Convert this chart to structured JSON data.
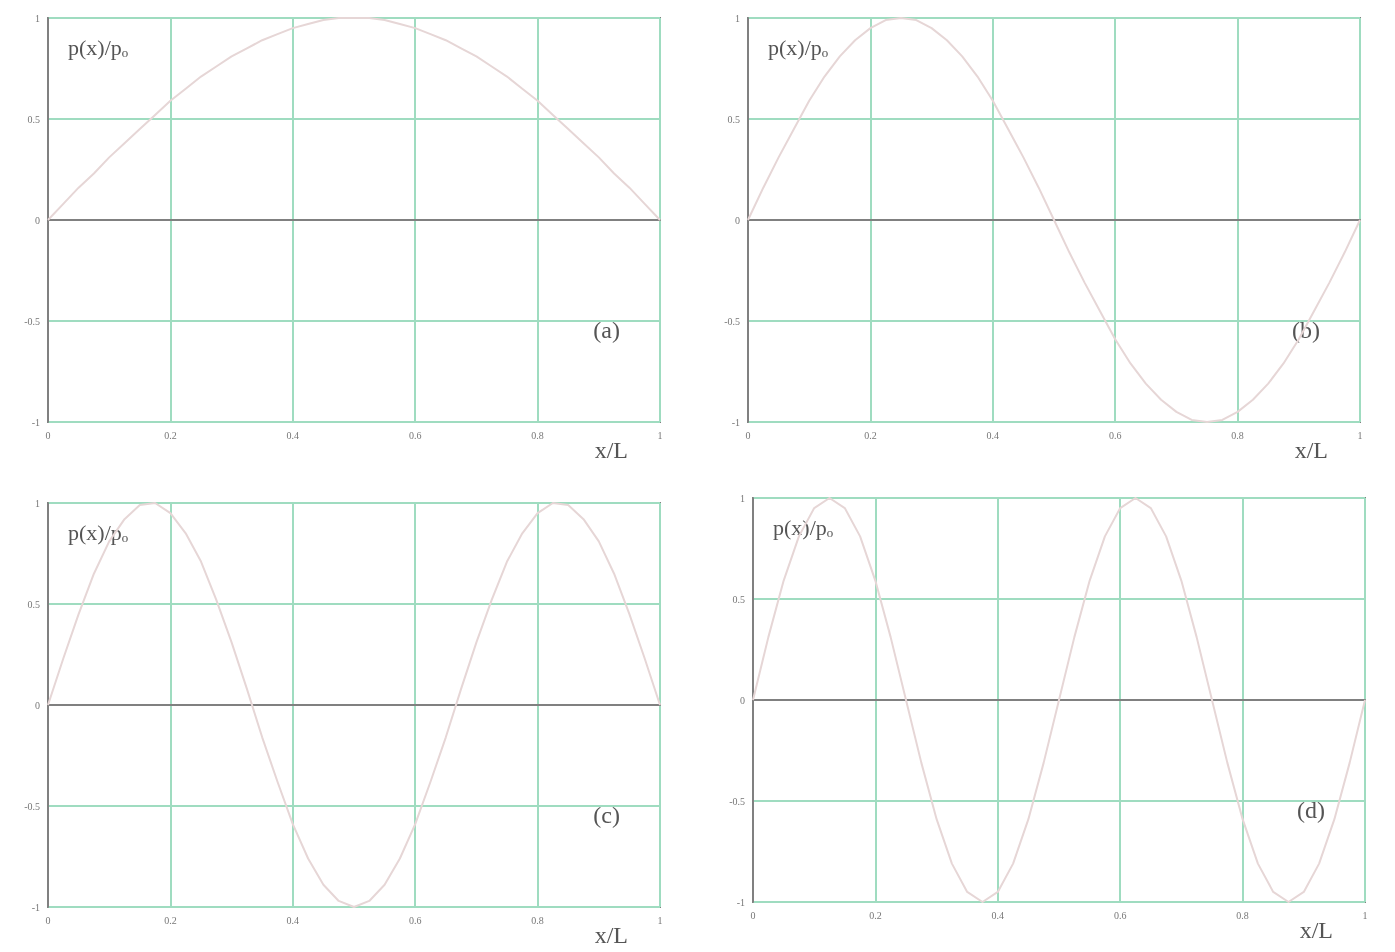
{
  "chart_data": [
    {
      "type": "line",
      "ylabel": "p(x)/pₒ",
      "xlabel": "x/L",
      "annotations": [
        "(a)"
      ],
      "color": "#e6d6d6",
      "marker": "none",
      "grid": true,
      "xlim": [
        0,
        1
      ],
      "xticks": [
        0,
        0.2,
        0.4,
        0.6,
        0.8,
        1
      ],
      "ylim": [
        -1,
        1
      ],
      "yticks": [
        -1,
        -0.5,
        0,
        0.5,
        1
      ],
      "x": [
        0,
        0.025,
        0.05,
        0.075,
        0.1,
        0.125,
        0.15,
        0.175,
        0.2,
        0.225,
        0.25,
        0.275,
        0.3,
        0.325,
        0.35,
        0.375,
        0.4,
        0.425,
        0.45,
        0.475,
        0.5,
        0.525,
        0.55,
        0.575,
        0.6,
        0.625,
        0.65,
        0.675,
        0.7,
        0.725,
        0.75,
        0.775,
        0.8,
        0.825,
        0.85,
        0.875,
        0.9,
        0.925,
        0.95,
        0.975,
        1
      ],
      "values": [
        0,
        0.08,
        0.16,
        0.23,
        0.31,
        0.38,
        0.45,
        0.52,
        0.59,
        0.65,
        0.71,
        0.76,
        0.81,
        0.85,
        0.89,
        0.92,
        0.95,
        0.97,
        0.99,
        1,
        1,
        1,
        0.99,
        0.97,
        0.95,
        0.92,
        0.89,
        0.85,
        0.81,
        0.76,
        0.71,
        0.65,
        0.59,
        0.52,
        0.45,
        0.38,
        0.31,
        0.23,
        0.16,
        0.08,
        0
      ]
    },
    {
      "type": "line",
      "ylabel": "p(x)/pₒ",
      "xlabel": "x/L",
      "annotations": [
        "(b)"
      ],
      "color": "#e6d6d6",
      "marker": "none",
      "grid": true,
      "xlim": [
        0,
        1
      ],
      "xticks": [
        0,
        0.2,
        0.4,
        0.6,
        0.8,
        1
      ],
      "ylim": [
        -1,
        1
      ],
      "yticks": [
        -1,
        -0.5,
        0,
        0.5,
        1
      ],
      "x": [
        0,
        0.025,
        0.05,
        0.075,
        0.1,
        0.125,
        0.15,
        0.175,
        0.2,
        0.225,
        0.25,
        0.275,
        0.3,
        0.325,
        0.35,
        0.375,
        0.4,
        0.425,
        0.45,
        0.475,
        0.5,
        0.525,
        0.55,
        0.575,
        0.6,
        0.625,
        0.65,
        0.675,
        0.7,
        0.725,
        0.75,
        0.775,
        0.8,
        0.825,
        0.85,
        0.875,
        0.9,
        0.925,
        0.95,
        0.975,
        1
      ],
      "values": [
        0,
        0.16,
        0.31,
        0.45,
        0.59,
        0.71,
        0.81,
        0.89,
        0.95,
        0.99,
        1,
        0.99,
        0.95,
        0.89,
        0.81,
        0.71,
        0.59,
        0.45,
        0.31,
        0.16,
        0,
        -0.16,
        -0.31,
        -0.45,
        -0.59,
        -0.71,
        -0.81,
        -0.89,
        -0.95,
        -0.99,
        -1,
        -0.99,
        -0.95,
        -0.89,
        -0.81,
        -0.71,
        -0.59,
        -0.45,
        -0.31,
        -0.16,
        0
      ]
    },
    {
      "type": "line",
      "ylabel": "p(x)/pₒ",
      "xlabel": "x/L",
      "annotations": [
        "(c)"
      ],
      "color": "#e6d6d6",
      "marker": "none",
      "grid": true,
      "xlim": [
        0,
        1
      ],
      "xticks": [
        0,
        0.2,
        0.4,
        0.6,
        0.8,
        1
      ],
      "ylim": [
        -1,
        1
      ],
      "yticks": [
        -1,
        -0.5,
        0,
        0.5,
        1
      ],
      "x": [
        0,
        0.025,
        0.05,
        0.075,
        0.1,
        0.125,
        0.15,
        0.175,
        0.2,
        0.225,
        0.25,
        0.275,
        0.3,
        0.325,
        0.35,
        0.375,
        0.4,
        0.425,
        0.45,
        0.475,
        0.5,
        0.525,
        0.55,
        0.575,
        0.6,
        0.625,
        0.65,
        0.675,
        0.7,
        0.725,
        0.75,
        0.775,
        0.8,
        0.825,
        0.85,
        0.875,
        0.9,
        0.925,
        0.95,
        0.975,
        1
      ],
      "values": [
        0,
        0.23,
        0.45,
        0.65,
        0.81,
        0.92,
        0.99,
        1,
        0.95,
        0.85,
        0.71,
        0.52,
        0.31,
        0.08,
        -0.16,
        -0.38,
        -0.59,
        -0.76,
        -0.89,
        -0.97,
        -1,
        -0.97,
        -0.89,
        -0.76,
        -0.59,
        -0.38,
        -0.16,
        0.08,
        0.31,
        0.52,
        0.71,
        0.85,
        0.95,
        1,
        0.99,
        0.92,
        0.81,
        0.65,
        0.45,
        0.23,
        0
      ]
    },
    {
      "type": "line",
      "ylabel": "p(x)/pₒ",
      "xlabel": "x/L",
      "annotations": [
        "(d)"
      ],
      "color": "#e6d6d6",
      "marker": "none",
      "grid": true,
      "xlim": [
        0,
        1
      ],
      "xticks": [
        0,
        0.2,
        0.4,
        0.6,
        0.8,
        1
      ],
      "ylim": [
        -1,
        1
      ],
      "yticks": [
        -1,
        -0.5,
        0,
        0.5,
        1
      ],
      "x": [
        0,
        0.025,
        0.05,
        0.075,
        0.1,
        0.125,
        0.15,
        0.175,
        0.2,
        0.225,
        0.25,
        0.275,
        0.3,
        0.325,
        0.35,
        0.375,
        0.4,
        0.425,
        0.45,
        0.475,
        0.5,
        0.525,
        0.55,
        0.575,
        0.6,
        0.625,
        0.65,
        0.675,
        0.7,
        0.725,
        0.75,
        0.775,
        0.8,
        0.825,
        0.85,
        0.875,
        0.9,
        0.925,
        0.95,
        0.975,
        1
      ],
      "values": [
        0,
        0.31,
        0.59,
        0.81,
        0.95,
        1,
        0.95,
        0.81,
        0.59,
        0.31,
        0,
        -0.31,
        -0.59,
        -0.81,
        -0.95,
        -1,
        -0.95,
        -0.81,
        -0.59,
        -0.31,
        0,
        0.31,
        0.59,
        0.81,
        0.95,
        1,
        0.95,
        0.81,
        0.59,
        0.31,
        0,
        -0.31,
        -0.59,
        -0.81,
        -0.95,
        -1,
        -0.95,
        -0.81,
        -0.59,
        -0.31,
        0
      ]
    }
  ]
}
